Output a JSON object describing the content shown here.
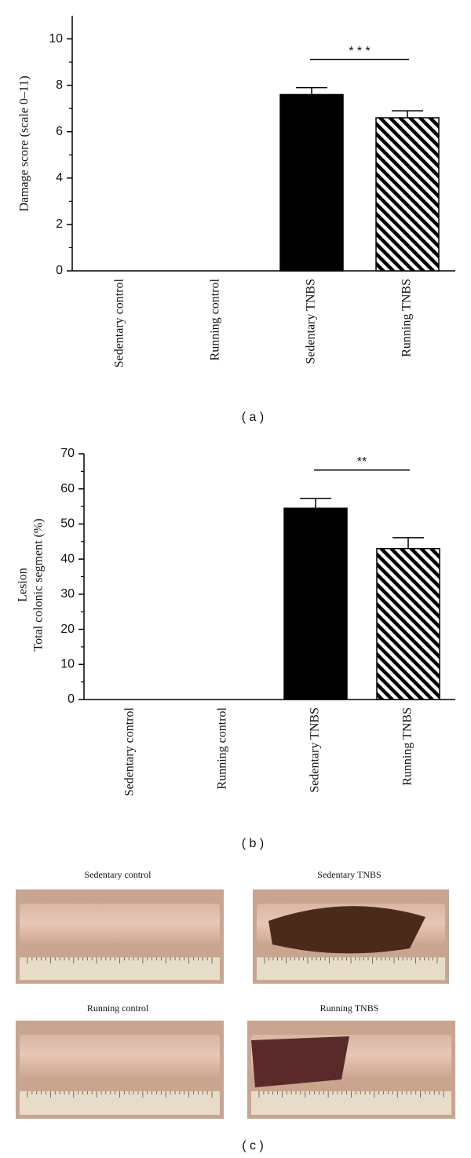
{
  "chart_data": [
    {
      "type": "bar",
      "panel_label": "( a )",
      "ylabel": [
        "Damage score (scale 0–11)"
      ],
      "categories": [
        "Sedentary control",
        "Running control",
        "Sedentary TNBS",
        "Running TNBS"
      ],
      "values": [
        0,
        0,
        7.6,
        6.6
      ],
      "errors": [
        null,
        null,
        0.3,
        0.3
      ],
      "bar_styles": [
        "solid",
        "solid",
        "solid",
        "hatched"
      ],
      "color": "#000000",
      "ylim": [
        0,
        11
      ],
      "yticks": [
        0,
        2,
        4,
        6,
        8,
        10
      ],
      "yminor_ticks": [
        1,
        3,
        5,
        7,
        9
      ],
      "significance": {
        "label": "* * *",
        "between": [
          2,
          3
        ]
      }
    },
    {
      "type": "bar",
      "panel_label": "( b )",
      "ylabel": [
        "Lesion",
        "Total colonic segment (%)"
      ],
      "categories": [
        "Sedentary control",
        "Running control",
        "Sedentary TNBS",
        "Running TNBS"
      ],
      "values": [
        0,
        0,
        54.5,
        43
      ],
      "errors": [
        null,
        null,
        2.8,
        3.1
      ],
      "bar_styles": [
        "solid",
        "solid",
        "solid",
        "hatched"
      ],
      "color": "#000000",
      "ylim": [
        0,
        70
      ],
      "yticks": [
        0,
        10,
        20,
        30,
        40,
        50,
        60,
        70
      ],
      "yminor_ticks": [
        5,
        15,
        25,
        35,
        45,
        55,
        65
      ],
      "significance": {
        "label": "**",
        "between": [
          2,
          3
        ]
      }
    }
  ],
  "photo_panel": {
    "panel_label": "( c )",
    "photos": [
      {
        "label": "Sedentary control"
      },
      {
        "label": "Sedentary TNBS"
      },
      {
        "label": "Running control"
      },
      {
        "label": "Running TNBS"
      }
    ]
  }
}
